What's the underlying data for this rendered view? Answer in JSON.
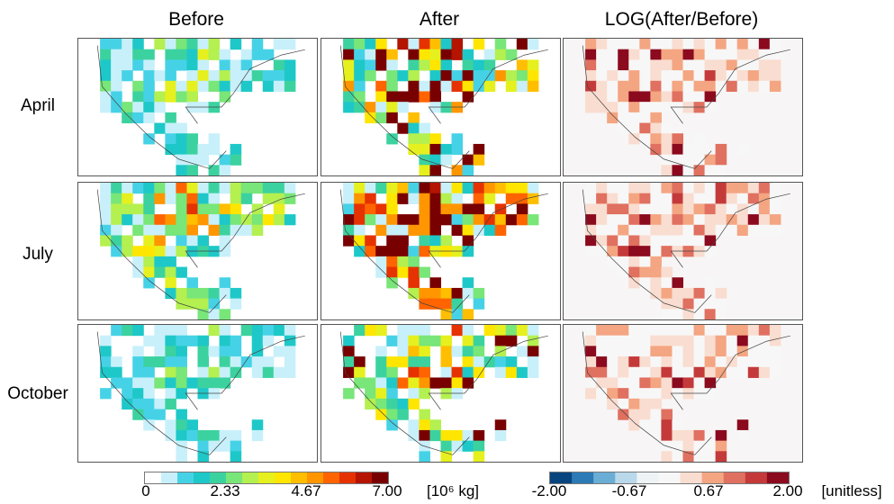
{
  "chart_data": {
    "type": "heatmap",
    "columns": [
      "Before",
      "After",
      "LOG(After/Before)"
    ],
    "rows": [
      "April",
      "July",
      "October"
    ],
    "colorbars": [
      {
        "ticks": [
          "0",
          "2.33",
          "4.67",
          "7.00"
        ],
        "range": [
          0,
          7.0
        ],
        "unit": "[10⁶ kg]",
        "colors": [
          "#ffffff",
          "#c8f0fa",
          "#46d2e6",
          "#1ec8c8",
          "#3cd2a0",
          "#78e678",
          "#b4f050",
          "#e6f01e",
          "#ffe600",
          "#ffbe00",
          "#ff9600",
          "#ff6400",
          "#e63200",
          "#b41400",
          "#780000"
        ]
      },
      {
        "ticks": [
          "-2.00",
          "-0.67",
          "0.67",
          "2.00"
        ],
        "range": [
          -2.0,
          2.0
        ],
        "unit": "[unitless]",
        "colors": [
          "#08457e",
          "#2c7bb6",
          "#92c5de",
          "#f7f7f7",
          "#f4a582",
          "#d6604d",
          "#b2182b",
          "#8b0a1e"
        ]
      }
    ]
  }
}
